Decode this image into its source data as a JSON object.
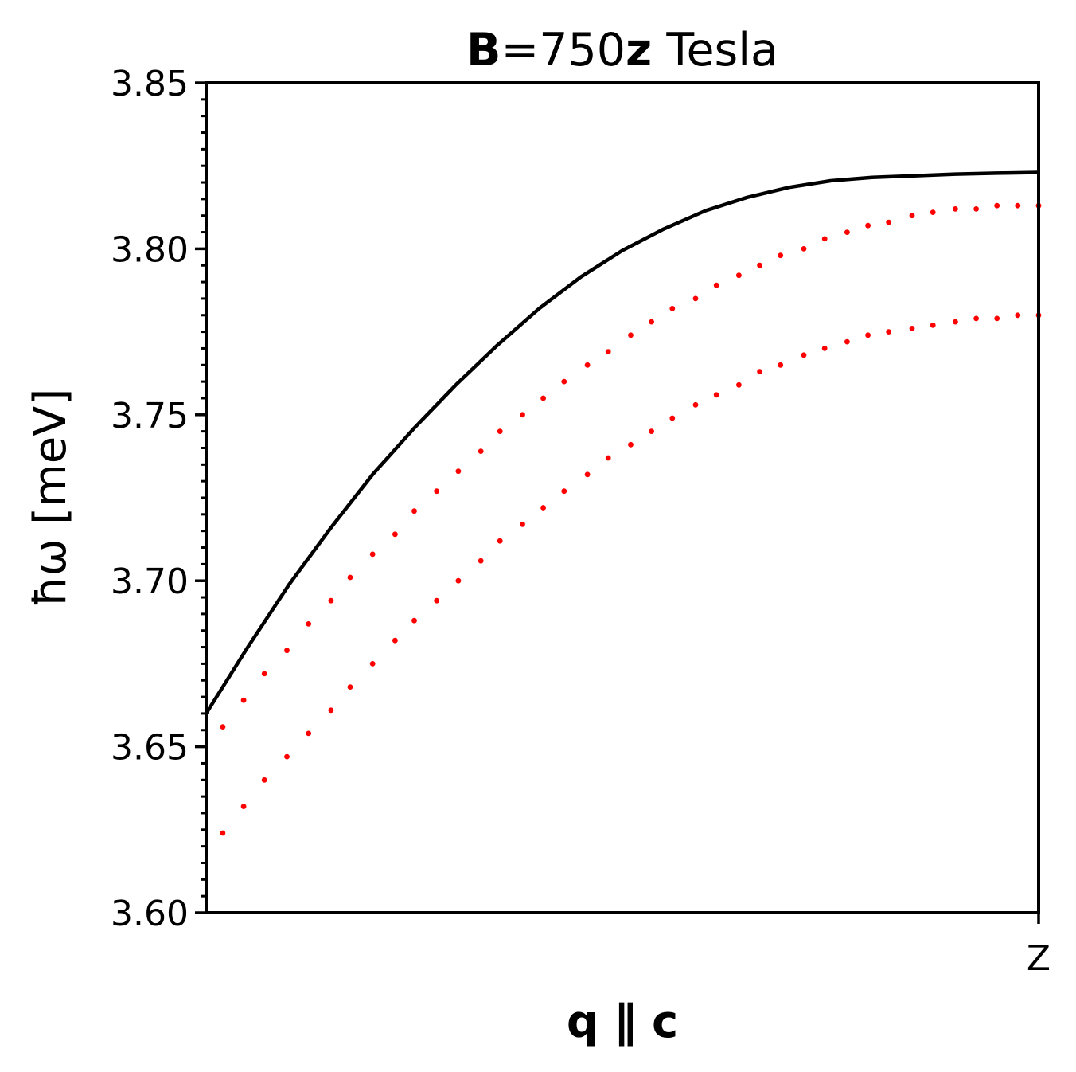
{
  "chart_data": {
    "type": "line",
    "title": {
      "parts": [
        {
          "text": "B",
          "bold": true
        },
        {
          "text": "=750",
          "bold": false
        },
        {
          "text": "z",
          "bold": true
        },
        {
          "text": " Tesla",
          "bold": false
        }
      ]
    },
    "xlabel": "q ∥ c",
    "ylabel": "ħω [meV]",
    "xlim": [
      0,
      1
    ],
    "ylim": [
      3.6,
      3.85
    ],
    "xticks": [
      {
        "value": 1,
        "label": "Z"
      }
    ],
    "yticks": [
      {
        "value": 3.6,
        "label": "3.60"
      },
      {
        "value": 3.65,
        "label": "3.65"
      },
      {
        "value": 3.7,
        "label": "3.70"
      },
      {
        "value": 3.75,
        "label": "3.75"
      },
      {
        "value": 3.8,
        "label": "3.80"
      },
      {
        "value": 3.85,
        "label": "3.85"
      }
    ],
    "y_minor_step": 0.005,
    "grid": false,
    "series": [
      {
        "style": "solid",
        "color": "#000000",
        "x": [
          0,
          0.05,
          0.1,
          0.15,
          0.2,
          0.25,
          0.3,
          0.35,
          0.4,
          0.45,
          0.5,
          0.55,
          0.6,
          0.65,
          0.7,
          0.75,
          0.8,
          0.85,
          0.9,
          0.95,
          1.0
        ],
        "y": [
          3.66,
          3.68,
          3.699,
          3.716,
          3.732,
          3.746,
          3.759,
          3.771,
          3.782,
          3.7915,
          3.7995,
          3.806,
          3.8115,
          3.8155,
          3.8185,
          3.8205,
          3.8215,
          3.822,
          3.8225,
          3.8228,
          3.823
        ]
      },
      {
        "style": "dotted",
        "color": "#ff0000",
        "x": [
          0.02,
          0.045,
          0.07,
          0.097,
          0.123,
          0.15,
          0.173,
          0.2,
          0.227,
          0.25,
          0.277,
          0.303,
          0.33,
          0.353,
          0.38,
          0.405,
          0.43,
          0.458,
          0.483,
          0.51,
          0.535,
          0.56,
          0.588,
          0.613,
          0.64,
          0.665,
          0.69,
          0.718,
          0.743,
          0.77,
          0.795,
          0.82,
          0.848,
          0.873,
          0.9,
          0.925,
          0.95,
          0.975,
          1.0
        ],
        "y": [
          3.656,
          3.664,
          3.672,
          3.679,
          3.687,
          3.694,
          3.701,
          3.708,
          3.714,
          3.721,
          3.727,
          3.733,
          3.739,
          3.745,
          3.75,
          3.755,
          3.76,
          3.765,
          3.769,
          3.774,
          3.778,
          3.782,
          3.785,
          3.789,
          3.792,
          3.795,
          3.798,
          3.8,
          3.803,
          3.805,
          3.807,
          3.808,
          3.81,
          3.811,
          3.812,
          3.812,
          3.813,
          3.813,
          3.813
        ]
      },
      {
        "style": "dotted",
        "color": "#ff0000",
        "x": [
          0.02,
          0.045,
          0.07,
          0.097,
          0.123,
          0.15,
          0.173,
          0.2,
          0.227,
          0.25,
          0.277,
          0.303,
          0.33,
          0.353,
          0.38,
          0.405,
          0.43,
          0.458,
          0.483,
          0.51,
          0.535,
          0.56,
          0.588,
          0.613,
          0.64,
          0.665,
          0.69,
          0.718,
          0.743,
          0.77,
          0.795,
          0.82,
          0.848,
          0.873,
          0.9,
          0.925,
          0.95,
          0.975,
          1.0
        ],
        "y": [
          3.624,
          3.632,
          3.64,
          3.647,
          3.654,
          3.661,
          3.668,
          3.675,
          3.682,
          3.688,
          3.694,
          3.7,
          3.706,
          3.712,
          3.717,
          3.722,
          3.727,
          3.732,
          3.737,
          3.741,
          3.745,
          3.749,
          3.753,
          3.756,
          3.759,
          3.763,
          3.765,
          3.768,
          3.77,
          3.772,
          3.774,
          3.775,
          3.776,
          3.777,
          3.778,
          3.779,
          3.779,
          3.78,
          3.78
        ]
      }
    ]
  }
}
